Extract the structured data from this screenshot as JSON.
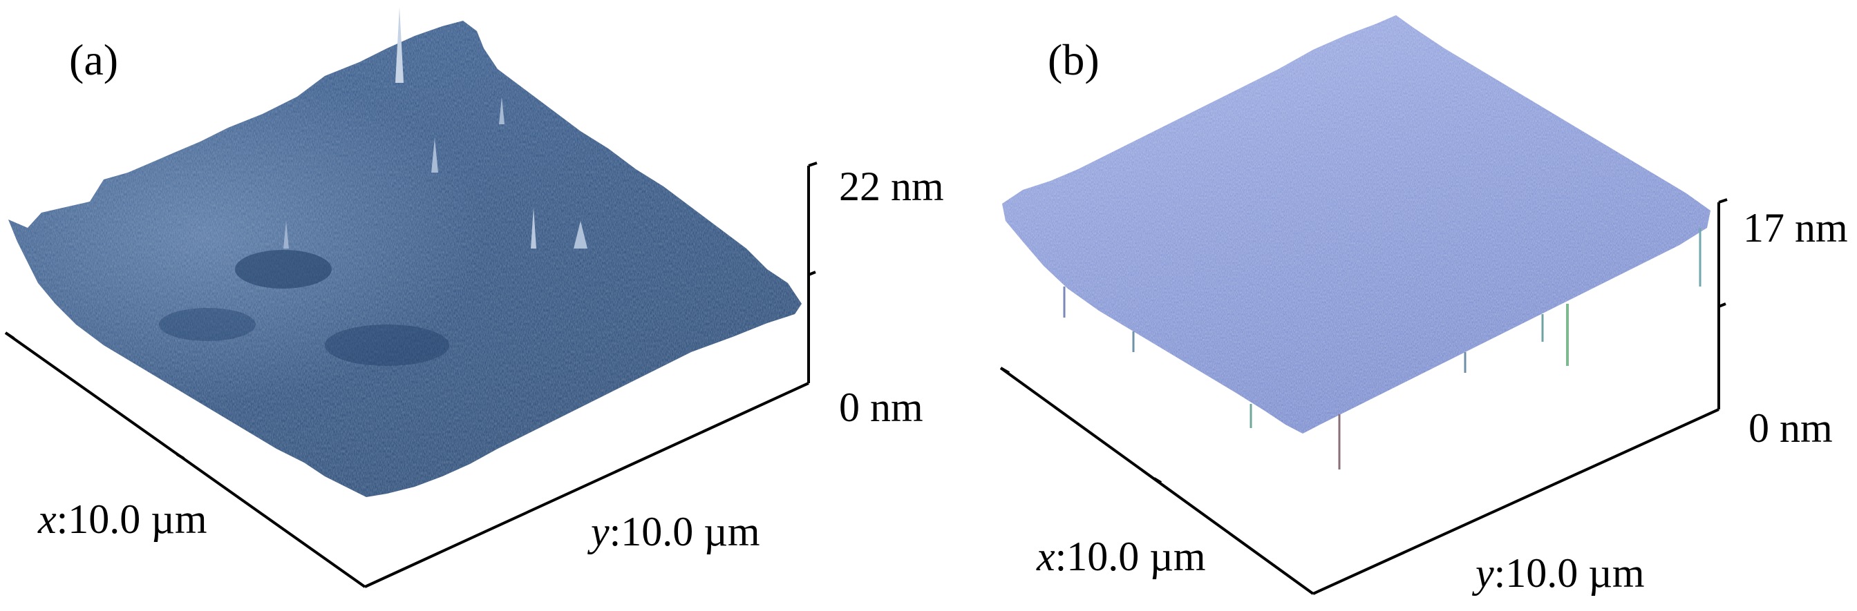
{
  "panels": [
    {
      "tag": "(a)",
      "z_max_label": "22 nm",
      "z_min_label": "0 nm",
      "x_axis_var": "x",
      "x_axis_value": ":10.0 µm",
      "y_axis_var": "y",
      "y_axis_value": ":10.0 µm",
      "surface_color": "#2f5484"
    },
    {
      "tag": "(b)",
      "z_max_label": "17 nm",
      "z_min_label": "0 nm",
      "x_axis_var": "x",
      "x_axis_value": ":10.0 µm",
      "y_axis_var": "y",
      "y_axis_value": ":10.0 µm",
      "surface_color": "#7f91d4"
    }
  ]
}
